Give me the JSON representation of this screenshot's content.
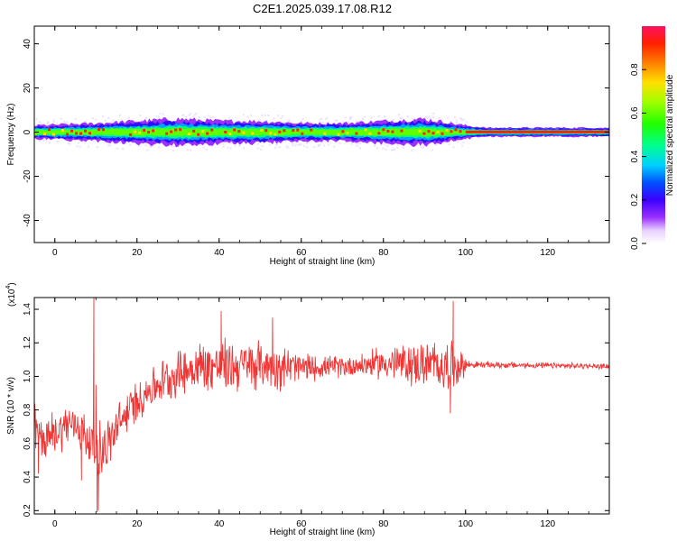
{
  "title": "C2E1.2025.039.17.08.R12",
  "chart_data": [
    {
      "type": "heatmap",
      "title": "C2E1.2025.039.17.08.R12",
      "xlabel": "Height of straight line (km)",
      "ylabel": "Frequency (Hz)",
      "xlim": [
        -5,
        135
      ],
      "ylim": [
        -50,
        48
      ],
      "xticks": [
        "0",
        "20",
        "40",
        "60",
        "80",
        "100",
        "120"
      ],
      "yticks": [
        "-40",
        "-20",
        "0",
        "20",
        "40"
      ],
      "colorbar": {
        "label": "Normalized spectral amplitude",
        "range": [
          0,
          1
        ],
        "ticks": [
          "0.0",
          "0.2",
          "0.4",
          "0.6",
          "0.8"
        ]
      },
      "band_center_hz": 0,
      "band_halfwidth_hz": [
        {
          "x": -5,
          "hz": 3
        },
        {
          "x": 10,
          "hz": 4
        },
        {
          "x": 20,
          "hz": 5
        },
        {
          "x": 30,
          "hz": 6
        },
        {
          "x": 40,
          "hz": 5
        },
        {
          "x": 50,
          "hz": 5
        },
        {
          "x": 60,
          "hz": 4
        },
        {
          "x": 70,
          "hz": 4
        },
        {
          "x": 80,
          "hz": 5
        },
        {
          "x": 90,
          "hz": 6
        },
        {
          "x": 100,
          "hz": 3
        },
        {
          "x": 105,
          "hz": 2
        },
        {
          "x": 135,
          "hz": 2
        }
      ]
    },
    {
      "type": "line",
      "xlabel": "Height of straight line (km)",
      "ylabel": "SNR (10 * v/v)",
      "y_multiplier_label": "(x10",
      "y_multiplier_exp": "4",
      "y_multiplier_close": ")",
      "xlim": [
        -5,
        135
      ],
      "ylim": [
        0.18,
        1.47
      ],
      "xticks": [
        "0",
        "20",
        "40",
        "60",
        "80",
        "100",
        "120"
      ],
      "yticks": [
        "0.2",
        "0.4",
        "0.6",
        "0.8",
        "1.0",
        "1.2",
        "1.4"
      ],
      "color": "#f03535",
      "series": [
        {
          "trend": [
            {
              "x": -5,
              "y": 0.7
            },
            {
              "x": -3,
              "y": 0.62
            },
            {
              "x": 0,
              "y": 0.66
            },
            {
              "x": 3,
              "y": 0.72
            },
            {
              "x": 6,
              "y": 0.7
            },
            {
              "x": 8,
              "y": 0.62
            },
            {
              "x": 10,
              "y": 0.58
            },
            {
              "x": 12,
              "y": 0.56
            },
            {
              "x": 15,
              "y": 0.68
            },
            {
              "x": 18,
              "y": 0.8
            },
            {
              "x": 22,
              "y": 0.9
            },
            {
              "x": 26,
              "y": 0.97
            },
            {
              "x": 30,
              "y": 1.02
            },
            {
              "x": 35,
              "y": 1.06
            },
            {
              "x": 40,
              "y": 1.06
            },
            {
              "x": 50,
              "y": 1.07
            },
            {
              "x": 60,
              "y": 1.05
            },
            {
              "x": 70,
              "y": 1.06
            },
            {
              "x": 80,
              "y": 1.08
            },
            {
              "x": 90,
              "y": 1.07
            },
            {
              "x": 97,
              "y": 1.06
            },
            {
              "x": 100,
              "y": 1.07
            },
            {
              "x": 135,
              "y": 1.06
            }
          ],
          "noise_amplitude": [
            {
              "x": -5,
              "y": 0.14
            },
            {
              "x": 5,
              "y": 0.12
            },
            {
              "x": 10,
              "y": 0.18
            },
            {
              "x": 18,
              "y": 0.12
            },
            {
              "x": 25,
              "y": 0.12
            },
            {
              "x": 40,
              "y": 0.16
            },
            {
              "x": 55,
              "y": 0.13
            },
            {
              "x": 65,
              "y": 0.06
            },
            {
              "x": 75,
              "y": 0.07
            },
            {
              "x": 85,
              "y": 0.12
            },
            {
              "x": 97,
              "y": 0.15
            },
            {
              "x": 99.5,
              "y": 0.07
            },
            {
              "x": 101,
              "y": 0.02
            },
            {
              "x": 135,
              "y": 0.015
            }
          ],
          "spikes": [
            {
              "x": 9.5,
              "y": 1.47
            },
            {
              "x": 10,
              "y": 0.95
            },
            {
              "x": 10.3,
              "y": 0.19
            },
            {
              "x": 10.6,
              "y": 0.2
            },
            {
              "x": 6.5,
              "y": 0.38
            },
            {
              "x": -4,
              "y": 0.42
            },
            {
              "x": 40.5,
              "y": 1.39
            },
            {
              "x": 53,
              "y": 1.35
            },
            {
              "x": 97,
              "y": 1.45
            },
            {
              "x": 96.3,
              "y": 0.78
            }
          ]
        }
      ]
    }
  ]
}
